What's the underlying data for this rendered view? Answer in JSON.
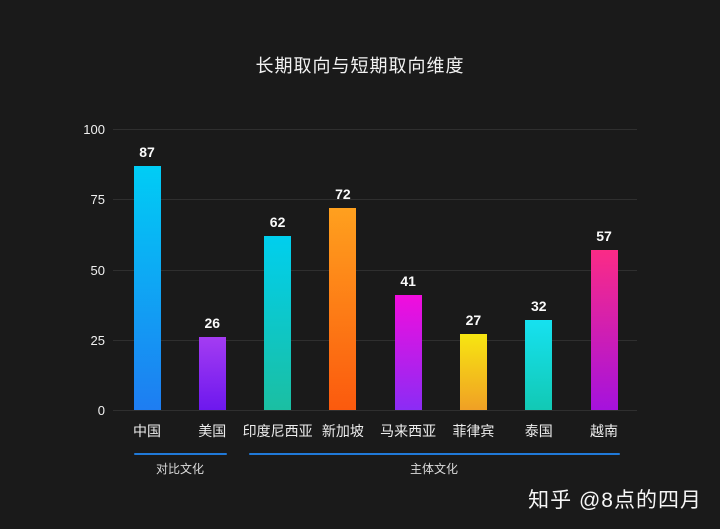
{
  "title": "长期取向与短期取向维度",
  "watermark": "知乎 @8点的四月",
  "colors": {
    "background": "#1a1a1a",
    "gridline": "#2f2f2f",
    "text": "#f0f0f0",
    "group_line": "#2079d8"
  },
  "chart_data": {
    "type": "bar",
    "title": "长期取向与短期取向维度",
    "categories": [
      "中国",
      "美国",
      "印度尼西亚",
      "新加坡",
      "马来西亚",
      "菲律宾",
      "泰国",
      "越南"
    ],
    "values": [
      87,
      26,
      62,
      72,
      41,
      27,
      32,
      57
    ],
    "bar_gradients_top_to_bottom": [
      [
        "#00cdf5",
        "#1e7df2"
      ],
      [
        "#a43cf2",
        "#6d18ee"
      ],
      [
        "#00cfee",
        "#1bbfa2"
      ],
      [
        "#ffa01e",
        "#fb5a0e"
      ],
      [
        "#f20ddd",
        "#8b2cf5"
      ],
      [
        "#f7e611",
        "#f0a025"
      ],
      [
        "#16e1f0",
        "#12c9b4"
      ],
      [
        "#fb2b86",
        "#a512dd"
      ]
    ],
    "xlabel": "",
    "ylabel": "",
    "ylim": [
      0,
      100
    ],
    "yticks": [
      0,
      25,
      50,
      75,
      100
    ],
    "grid": true,
    "legend": false,
    "value_labels_shown": true,
    "groups": [
      {
        "label": "对比文化",
        "categories": [
          "中国",
          "美国"
        ]
      },
      {
        "label": "主体文化",
        "categories": [
          "印度尼西亚",
          "新加坡",
          "马来西亚",
          "菲律宾",
          "泰国",
          "越南"
        ]
      }
    ]
  }
}
